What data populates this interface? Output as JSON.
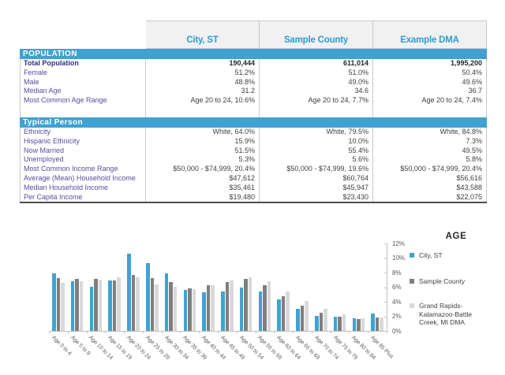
{
  "colors": {
    "accent_blue": "#3FA2D2",
    "header_text_blue": "#2D9CD3",
    "row_label_purple": "#5B4AA0",
    "value_text": "#3F3F3F",
    "header_bg": "#F1F1F1",
    "table_border": "#C9C9C9"
  },
  "table": {
    "columns": [
      "City, ST",
      "Sample County",
      "Example DMA"
    ],
    "sections": [
      {
        "title": "POPULATION",
        "rows": [
          {
            "label": "Total Population",
            "bold": true,
            "values": [
              "190,444",
              "611,014",
              "1,995,200"
            ]
          },
          {
            "label": "Female",
            "bold": false,
            "values": [
              "51.2%",
              "51.0%",
              "50.4%"
            ]
          },
          {
            "label": "Male",
            "bold": false,
            "values": [
              "48.8%",
              "49.0%",
              "49.6%"
            ]
          },
          {
            "label": "Median Age",
            "bold": false,
            "values": [
              "31.2",
              "34.6",
              "36.7"
            ]
          },
          {
            "label": "Most Common Age Range",
            "bold": false,
            "values": [
              "Age 20 to 24, 10.6%",
              "Age 20 to 24, 7.7%",
              "Age 20 to 24, 7.4%"
            ]
          }
        ]
      },
      {
        "title": "Typical Person",
        "rows": [
          {
            "label": "Ethnicity",
            "bold": false,
            "values": [
              "White, 64.0%",
              "White, 79.5%",
              "White, 84.8%"
            ]
          },
          {
            "label": "Hispanic Ethnicity",
            "bold": false,
            "values": [
              "15.9%",
              "10.0%",
              "7.3%"
            ]
          },
          {
            "label": "Now Married",
            "bold": false,
            "values": [
              "51.5%",
              "55.4%",
              "49.5%"
            ]
          },
          {
            "label": "Unemployed",
            "bold": false,
            "values": [
              "5.3%",
              "5.6%",
              "5.8%"
            ]
          },
          {
            "label": "Most Common Income Range",
            "bold": false,
            "values": [
              "$50,000 - $74,999, 20.4%",
              "$50,000 - $74,999, 19.6%",
              "$50,000 - $74,999, 20.4%"
            ]
          },
          {
            "label": "Average (Mean) Household Income",
            "bold": false,
            "values": [
              "$47,612",
              "$60,764",
              "$56,616"
            ]
          },
          {
            "label": "Median Household Income",
            "bold": false,
            "values": [
              "$35,461",
              "$45,947",
              "$43,588"
            ]
          },
          {
            "label": "Per Capita Income",
            "bold": false,
            "values": [
              "$19,480",
              "$23,430",
              "$22,075"
            ]
          }
        ]
      }
    ]
  },
  "chart_data": {
    "type": "bar",
    "title": "AGE",
    "xlabel": "",
    "ylabel": "",
    "ylim": [
      0,
      12
    ],
    "y_ticks": [
      "0%",
      "2%",
      "4%",
      "6%",
      "8%",
      "10%",
      "12%"
    ],
    "grid": false,
    "axis_side": "right",
    "legend_position": "right",
    "categories": [
      "Age 0 to 4",
      "Age 5 to 9",
      "Age 10 to 14",
      "Age 15 to 19",
      "Age 20 to 24",
      "Age 25 to 29",
      "Age 30 to 34",
      "Age 35 to 39",
      "Age 40 to 44",
      "Age 45 to 49",
      "Age 50 to 54",
      "Age 55 to 59",
      "Age 60 to 64",
      "Age 65 to 69",
      "Age 70 to 74",
      "Age 75 to 79",
      "Age 80 to 84",
      "Age 85 Plus"
    ],
    "series": [
      {
        "name": "City, ST",
        "color": "#3FA2D2",
        "values": [
          7.9,
          6.8,
          6.1,
          6.9,
          10.6,
          9.3,
          7.9,
          5.6,
          5.3,
          5.4,
          5.9,
          5.4,
          4.3,
          3.0,
          2.1,
          2.0,
          1.7,
          2.4
        ]
      },
      {
        "name": "Sample County",
        "color": "#7F7F7F",
        "values": [
          7.2,
          7.1,
          7.1,
          6.9,
          7.7,
          7.2,
          6.7,
          5.8,
          6.3,
          6.7,
          7.1,
          6.3,
          4.8,
          3.5,
          2.5,
          2.0,
          1.6,
          1.8
        ]
      },
      {
        "name": "Grand Rapids-Kalamazoo-Battle Creek, MI DMA",
        "color": "#D9D9D9",
        "values": [
          6.6,
          6.8,
          7.0,
          7.3,
          7.4,
          6.4,
          6.1,
          5.7,
          6.3,
          6.9,
          7.4,
          6.8,
          5.4,
          4.1,
          3.0,
          2.3,
          1.7,
          1.8
        ]
      }
    ]
  }
}
